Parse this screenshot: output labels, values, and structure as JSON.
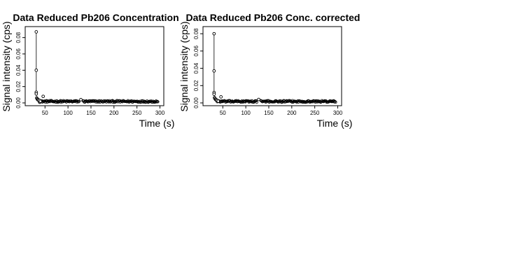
{
  "chart_data": [
    {
      "type": "scatter",
      "title": "Data Reduced Pb206 Concentration",
      "xlabel": "Time (s)",
      "ylabel": "Signal intensity (cps)",
      "xlim": [
        20,
        300
      ],
      "ylim": [
        0,
        0.09
      ],
      "xticks": [
        "50",
        "100",
        "150",
        "200",
        "250",
        "300"
      ],
      "yticks": [
        "0.00",
        "0.02",
        "0.04",
        "0.06",
        "0.08"
      ],
      "grid": false,
      "spike": [
        {
          "x": 31,
          "y": 0.087
        },
        {
          "x": 31,
          "y": 0.04
        },
        {
          "x": 31,
          "y": 0.013
        },
        {
          "x": 31,
          "y": 0.011
        },
        {
          "x": 32,
          "y": 0.006
        },
        {
          "x": 33,
          "y": 0.005
        },
        {
          "x": 34,
          "y": 0.004
        },
        {
          "x": 35,
          "y": 0.004
        },
        {
          "x": 36,
          "y": 0.003
        },
        {
          "x": 38,
          "y": 0.003
        },
        {
          "x": 40,
          "y": 0.002
        },
        {
          "x": 46,
          "y": 0.008
        },
        {
          "x": 128,
          "y": 0.004
        }
      ],
      "baseline": {
        "x_start": 38,
        "x_end": 296,
        "gap_start": 124,
        "gap_end": 132,
        "level": 0.0018,
        "spread": 0.0022
      },
      "points_in_sequence": false
    },
    {
      "type": "scatter",
      "title": "Data Reduced Pb206 Conc. corrected",
      "xlabel": "Time (s)",
      "ylabel": "Signal intensity (cps)",
      "xlim": [
        20,
        300
      ],
      "ylim": [
        0,
        0.085
      ],
      "xticks": [
        "50",
        "100",
        "150",
        "200",
        "250",
        "300"
      ],
      "yticks": [
        "0.00",
        "0.02",
        "0.04",
        "0.06",
        "0.08"
      ],
      "grid": false,
      "spike": [
        {
          "x": 31,
          "y": 0.08
        },
        {
          "x": 31,
          "y": 0.037
        },
        {
          "x": 31,
          "y": 0.012
        },
        {
          "x": 31,
          "y": 0.01
        },
        {
          "x": 32,
          "y": 0.006
        },
        {
          "x": 33,
          "y": 0.005
        },
        {
          "x": 34,
          "y": 0.004
        },
        {
          "x": 35,
          "y": 0.004
        },
        {
          "x": 36,
          "y": 0.003
        },
        {
          "x": 38,
          "y": 0.003
        },
        {
          "x": 40,
          "y": 0.002
        },
        {
          "x": 46,
          "y": 0.007
        },
        {
          "x": 128,
          "y": 0.004
        }
      ],
      "baseline": {
        "x_start": 38,
        "x_end": 296,
        "gap_start": 124,
        "gap_end": 132,
        "level": 0.0017,
        "spread": 0.002
      },
      "points_in_sequence": false
    }
  ]
}
